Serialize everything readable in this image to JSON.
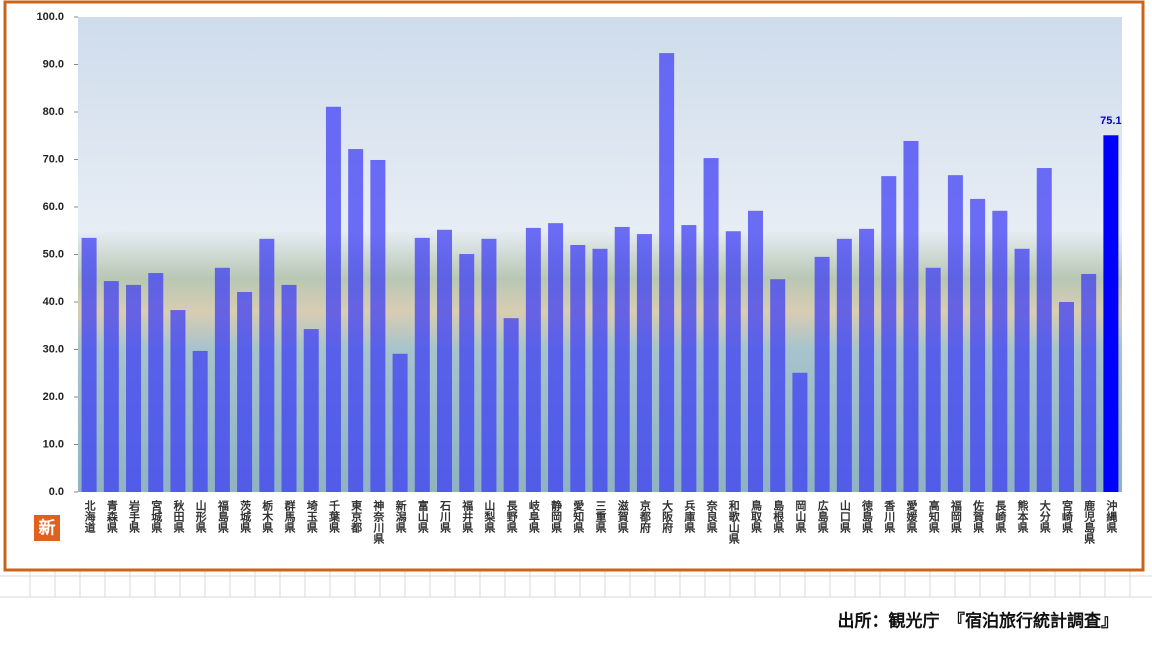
{
  "chart_data": {
    "type": "bar",
    "categories": [
      "北海道",
      "青森県",
      "岩手県",
      "宮城県",
      "秋田県",
      "山形県",
      "福島県",
      "茨城県",
      "栃木県",
      "群馬県",
      "埼玉県",
      "千葉県",
      "東京都",
      "神奈川県",
      "新潟県",
      "富山県",
      "石川県",
      "福井県",
      "山梨県",
      "長野県",
      "岐阜県",
      "静岡県",
      "愛知県",
      "三重県",
      "滋賀県",
      "京都府",
      "大阪府",
      "兵庫県",
      "奈良県",
      "和歌山県",
      "鳥取県",
      "島根県",
      "岡山県",
      "広島県",
      "山口県",
      "徳島県",
      "香川県",
      "愛媛県",
      "高知県",
      "福岡県",
      "佐賀県",
      "長崎県",
      "熊本県",
      "大分県",
      "宮崎県",
      "鹿児島県",
      "沖縄県"
    ],
    "values": [
      53.5,
      44.4,
      43.6,
      46.1,
      38.3,
      29.7,
      47.2,
      42.1,
      53.3,
      43.6,
      34.3,
      81.1,
      72.2,
      69.9,
      29.1,
      53.5,
      55.2,
      50.1,
      53.3,
      36.6,
      55.6,
      56.6,
      52.0,
      51.2,
      55.8,
      54.3,
      92.4,
      56.2,
      70.3,
      54.9,
      59.2,
      44.8,
      25.1,
      49.5,
      53.3,
      55.4,
      66.5,
      73.9,
      47.2,
      66.7,
      61.7,
      59.2,
      51.2,
      68.2,
      40.0,
      45.9,
      75.1
    ],
    "value_labels": [
      null,
      null,
      null,
      null,
      null,
      null,
      null,
      null,
      null,
      null,
      null,
      null,
      null,
      null,
      null,
      null,
      null,
      null,
      null,
      null,
      null,
      null,
      null,
      null,
      null,
      null,
      null,
      null,
      null,
      null,
      null,
      null,
      null,
      null,
      null,
      null,
      null,
      null,
      null,
      null,
      null,
      null,
      null,
      null,
      null,
      null,
      "75.1"
    ],
    "colors": [
      "#3a3af5",
      "#3a3af5",
      "#3a3af5",
      "#3a3af5",
      "#3a3af5",
      "#3a3af5",
      "#3a3af5",
      "#3a3af5",
      "#3a3af5",
      "#3a3af5",
      "#3a3af5",
      "#3a3af5",
      "#3a3af5",
      "#3a3af5",
      "#3a3af5",
      "#3a3af5",
      "#3a3af5",
      "#3a3af5",
      "#3a3af5",
      "#3a3af5",
      "#3a3af5",
      "#3a3af5",
      "#3a3af5",
      "#3a3af5",
      "#3a3af5",
      "#3a3af5",
      "#3a3af5",
      "#3a3af5",
      "#3a3af5",
      "#3a3af5",
      "#3a3af5",
      "#3a3af5",
      "#3a3af5",
      "#3a3af5",
      "#3a3af5",
      "#3a3af5",
      "#3a3af5",
      "#3a3af5",
      "#3a3af5",
      "#3a3af5",
      "#3a3af5",
      "#3a3af5",
      "#3a3af5",
      "#3a3af5",
      "#3a3af5",
      "#3a3af5",
      "#0000ff"
    ],
    "ylim": [
      0,
      100
    ],
    "yticks": [
      {
        "value": 0,
        "label": "0.0"
      },
      {
        "value": 10,
        "label": "10.0"
      },
      {
        "value": 20,
        "label": "20.0"
      },
      {
        "value": 30,
        "label": "30.0"
      },
      {
        "value": 40,
        "label": "40.0"
      },
      {
        "value": 50,
        "label": "50.0"
      },
      {
        "value": 60,
        "label": "60.0"
      },
      {
        "value": 70,
        "label": "70.0"
      },
      {
        "value": 80,
        "label": "80.0"
      },
      {
        "value": 90,
        "label": "90.0"
      },
      {
        "value": 100,
        "label": "100.0"
      }
    ],
    "badge": "新",
    "source": "出所：観光庁　『宿泊旅行統計調査』"
  }
}
